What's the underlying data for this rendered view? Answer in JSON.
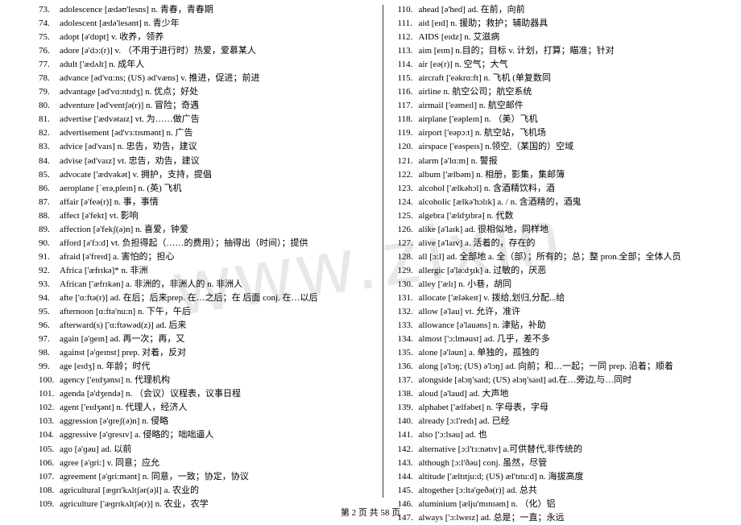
{
  "watermark": "www.zixin",
  "footer": "第 2 页 共 58 页",
  "left_start": 73,
  "right_start": 110,
  "left": [
    "adolescence [ædəʊ'lesns] n. 青春，青春期",
    "adolescent [ædə'lesənt] n. 青少年",
    "adopt [ə'dɒpt] v. 收养，领养",
    "adore [ə'dɔ:(r)] v. （不用于进行时）热爱，爱慕某人",
    "adult ['ædʌlt] n. 成年人",
    "advance [əd'vɑ:ns; (US) əd'væns] v. 推进，促进；前进",
    "advantage [əd'vɑ:ntɪdʒ] n. 优点；好处",
    "adventure [əd'ventʃə(r)] n. 冒险；奇遇",
    "advertise ['ædvətaɪz] vt. 为……做广告",
    "advertisement [əd'vɜ:tɪsmənt] n. 广告",
    "advice [əd'vaɪs] n. 忠告，劝告，建议",
    "advise [əd'vaɪz] vt. 忠告，劝告，建议",
    "advocate ['ædvəkət] v. 拥护，支持，提倡",
    "aeroplane [`erə,pleɪn] n. (英) 飞机",
    "affair [ə'feə(r)] n. 事，事情",
    "affect [ə'fekt] vt. 影响",
    "affection [ə'fekʃ(ə)n] n. 喜爱，钟爱",
    "afford [ə'fɔ:d] vt. 负担得起（……的费用）；抽得出（时间）；提供",
    "afraid [ə'freɪd] a. 害怕的；担心",
    "Africa ['æfrɪkə]* n. 非洲",
    "African ['æfrɪkən] a. 非洲的，非洲人的 n. 非洲人",
    "afte ['ɑ:ftə(r)] ad. 在后；后来prep. 在…之后；在 后面 conj. 在…以后",
    "afternoon [ɑ:ftə'nu:n] n. 下午，午后",
    "afterward(s) ['ɑ:ftəwəd(z)] ad. 后来",
    "again [ə'ɡeɪn] ad. 再一次；再，又",
    "against [ə'ɡeɪnst] prep. 对着，反对",
    "age [eɪdʒ] n. 年龄；时代",
    "agency ['eɪdʒənsɪ] n. 代理机构",
    "agenda [ə'dʒendə] n. （会议）议程表，议事日程",
    "agent ['eɪdʒənt] n. 代理人，经济人",
    "aggression [ə'ɡreʃ(ə)n] n. 侵略",
    "aggressive [ə'ɡresɪv] a. 侵略的；咄咄逼人",
    "ago [ə'ɡəu] ad. 以前",
    "agree [ə'ɡri:] v. 同意；应允",
    "agreement [ə'ɡri:mənt] n. 同意，一致；协定，协议",
    "agricultural [æɡrɪ'kʌltʃər(ə)l] a. 农业的",
    "agriculture ['æɡrɪkʌltʃə(r)] n. 农业，农学"
  ],
  "right": [
    "ahead [ə'hed] ad. 在前，向前",
    "aid [eɪd] n. 援助；救护；辅助器具",
    "AIDS [eɪdz] n. 艾滋病",
    "aim [eɪm] n.目的；目标 v. 计划，打算；瞄准；针对",
    "air [eə(r)] n. 空气；大气",
    "aircraft ['eəkrɑ:ft] n. 飞机 (单复数同",
    "airline n. 航空公司；航空系统",
    "airmail ['eəmeɪl] n. 航空邮件",
    "airplane ['eəpleɪn] n. （美）飞机",
    "airport ['eəpɔ:t] n. 航空站，飞机场",
    "airspace ['eəspeɪs] n.领空,（某国的）空域",
    "alarm [ə'lɑ:m] n. 警报",
    "album ['ælbəm] n. 相册，影集，集邮簿",
    "alcohol ['ælkəhɔl] n. 含酒精饮料，酒",
    "alcoholic [ælkə'hɔlɪk] a. / n. 含酒精的，酒鬼",
    "algebra ['ældʒɪbrə] n. 代数",
    "alike [ə'laɪk] ad. 很相似地，同样地",
    "alive [ə'laɪv] a. 活着的，存在的",
    "all [ɔ:l] ad. 全部地 a. 全（部）；所有的；总；整 pron.全部；全体人员",
    "allergic [ə'lə:dʒɪk] a. 过敏的，厌恶",
    "alley ['ælɪ] n. 小巷，胡同",
    "allocate ['æləkeɪt] v. 拨给,划归,分配...给",
    "allow [ə'lau] vt. 允许，准许",
    "allowance [ə'lauəns] n. 津贴，补助",
    "almost ['ɔ:lməust] ad. 几乎，差不多",
    "alone [ə'ləun] a. 单独的，孤独的",
    "along [ə'lɔŋ; (US) ə'lɔŋ] ad. 向前；和…一起；一同 prep. 沿着；顺着",
    "alongside [əlɔŋ'saɪd; (US) əlɔŋ'saɪd] ad.在…旁边,与…同时",
    "aloud [ə'laud] ad. 大声地",
    "alphabet ['ælfəbet] n. 字母表，字母",
    "already [ɔ:l'redɪ] ad. 已经",
    "also ['ɔ:lsəu] ad. 也",
    "alternative [ɔ:l'tɜ:nətɪv] a.可供替代,非传统的",
    "although [ɔ:l'ðəu] conj. 虽然，尽管",
    "altitude ['æltɪtju:d; (US) æl'tɪtu:d] n. 海拔高度",
    "altogether [ɔ:ltə'ɡeðə(r)] ad. 总共",
    "aluminium [ælju'mɪnɪəm] n. （化）铝",
    "always ['ɔ:lweɪz] ad. 总是；一直；永远"
  ]
}
